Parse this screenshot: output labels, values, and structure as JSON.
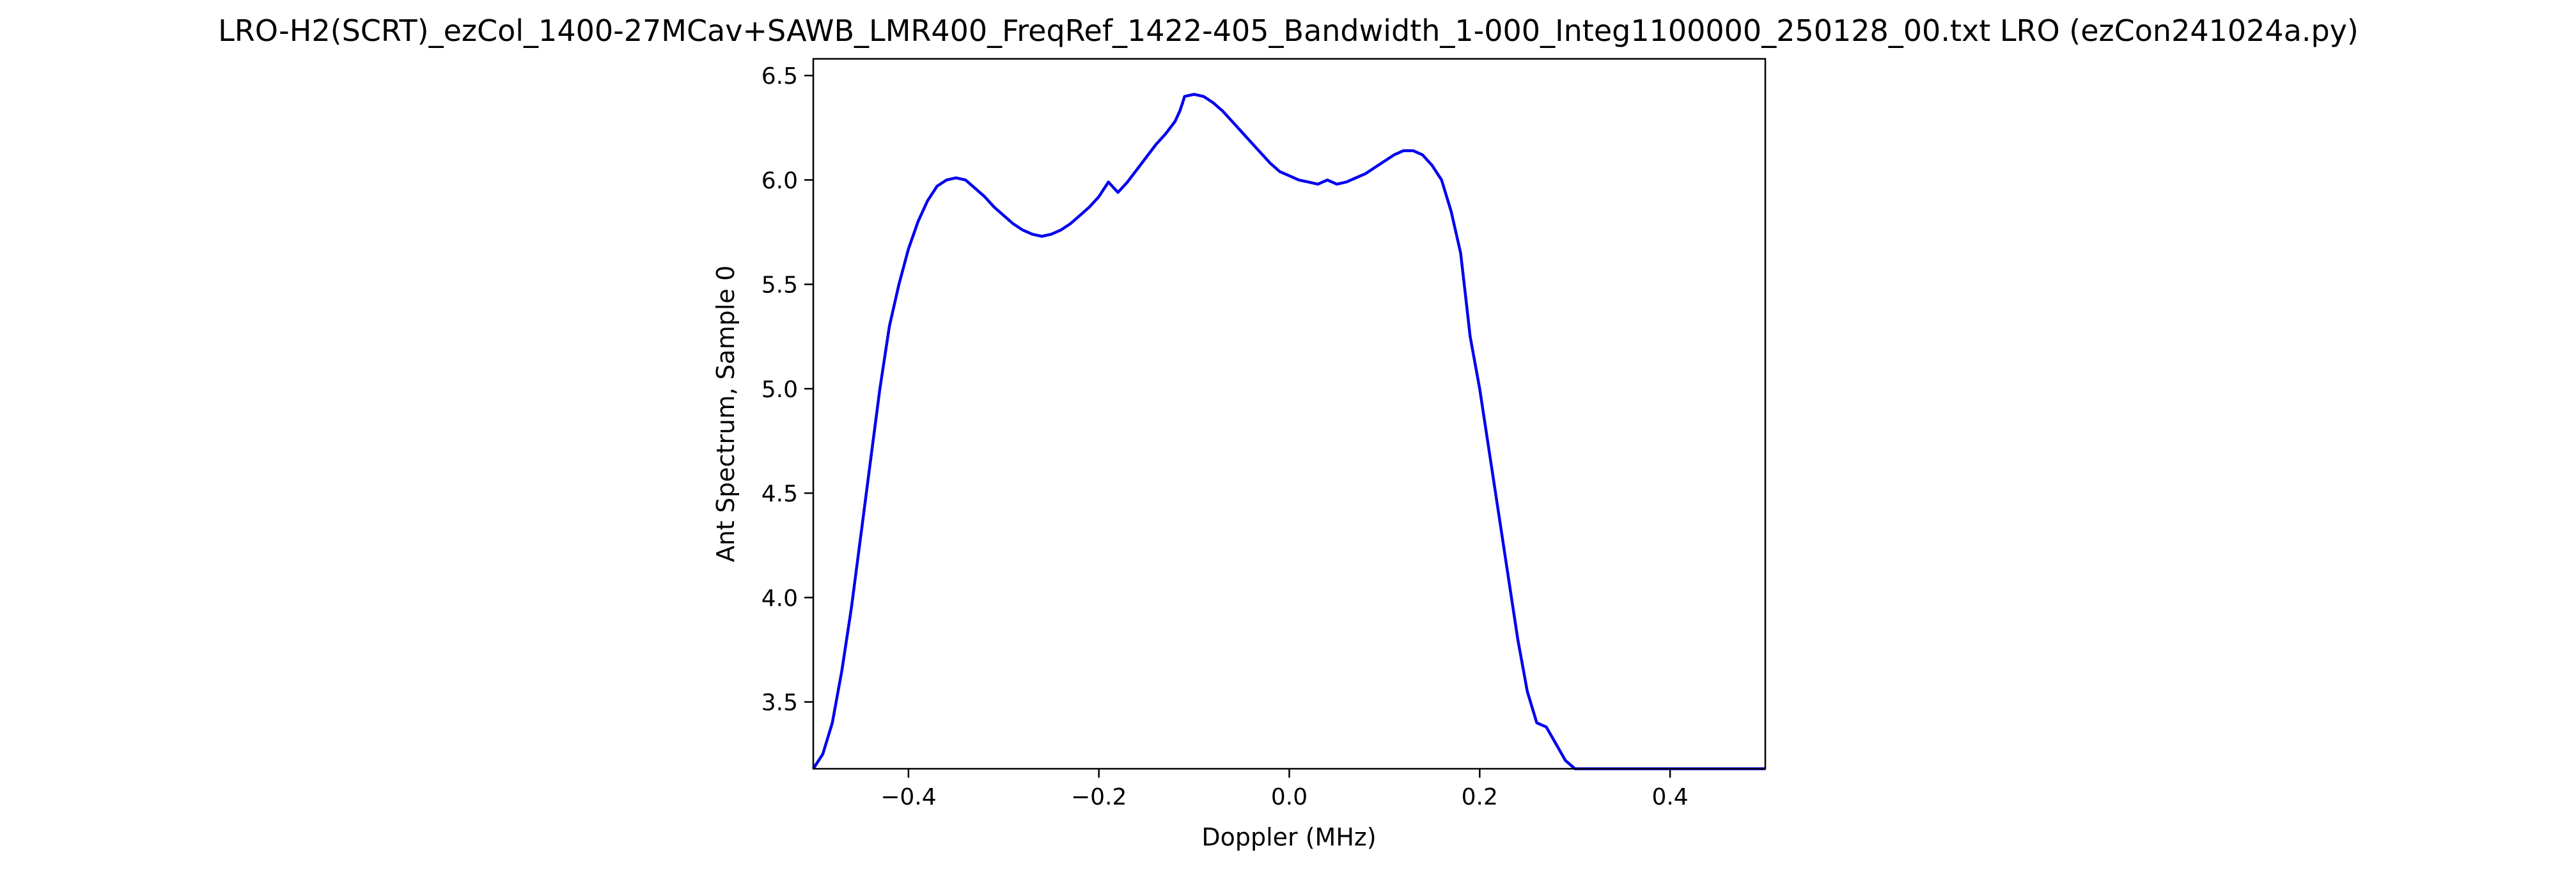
{
  "chart_data": {
    "type": "line",
    "title": "LRO-H2(SCRT)_ezCol_1400-27MCav+SAWB_LMR400_FreqRef_1422-405_Bandwidth_1-000_Integ1100000_250128_00.txt            LRO           (ezCon241024a.py)",
    "xlabel": "Doppler (MHz)",
    "ylabel": "Ant Spectrum, Sample 0",
    "xlim": [
      -0.5,
      0.5
    ],
    "ylim": [
      3.18,
      6.58
    ],
    "xticks": [
      -0.4,
      -0.2,
      0.0,
      0.2,
      0.4
    ],
    "xtick_labels": [
      "−0.4",
      "−0.2",
      "0.0",
      "0.2",
      "0.4"
    ],
    "yticks": [
      3.5,
      4.0,
      4.5,
      5.0,
      5.5,
      6.0,
      6.5
    ],
    "ytick_labels": [
      "3.5",
      "4.0",
      "4.5",
      "5.0",
      "5.5",
      "6.0",
      "6.5"
    ],
    "grid": false,
    "line_color": "#0000ee",
    "series": [
      {
        "x": [
          -0.5,
          -0.49,
          -0.48,
          -0.47,
          -0.46,
          -0.45,
          -0.44,
          -0.43,
          -0.42,
          -0.41,
          -0.4,
          -0.39,
          -0.38,
          -0.37,
          -0.36,
          -0.35,
          -0.34,
          -0.33,
          -0.32,
          -0.31,
          -0.3,
          -0.29,
          -0.28,
          -0.27,
          -0.26,
          -0.25,
          -0.24,
          -0.23,
          -0.22,
          -0.21,
          -0.2,
          -0.19,
          -0.18,
          -0.17,
          -0.16,
          -0.15,
          -0.14,
          -0.13,
          -0.12,
          -0.115,
          -0.112,
          -0.11,
          -0.1,
          -0.09,
          -0.08,
          -0.07,
          -0.06,
          -0.05,
          -0.04,
          -0.03,
          -0.02,
          -0.01,
          0.0,
          0.01,
          0.02,
          0.03,
          0.04,
          0.05,
          0.06,
          0.07,
          0.08,
          0.09,
          0.1,
          0.11,
          0.12,
          0.13,
          0.14,
          0.15,
          0.16,
          0.17,
          0.18,
          0.185,
          0.19,
          0.2,
          0.21,
          0.22,
          0.23,
          0.24,
          0.25,
          0.26,
          0.27,
          0.28,
          0.29,
          0.3,
          0.31,
          0.32,
          0.33,
          0.34,
          0.35,
          0.36,
          0.37,
          0.38,
          0.39,
          0.4,
          0.41,
          0.42,
          0.43,
          0.44,
          0.45,
          0.46,
          0.47,
          0.475,
          0.48,
          0.49,
          0.5
        ],
        "y": [
          3.18,
          3.25,
          3.4,
          3.65,
          3.95,
          4.3,
          4.65,
          5.0,
          5.3,
          5.5,
          5.67,
          5.8,
          5.9,
          5.97,
          6.0,
          6.01,
          6.0,
          5.96,
          5.92,
          5.87,
          5.83,
          5.79,
          5.76,
          5.74,
          5.73,
          5.74,
          5.76,
          5.79,
          5.83,
          5.87,
          5.92,
          5.99,
          5.94,
          5.99,
          6.05,
          6.11,
          6.17,
          6.22,
          6.28,
          6.33,
          6.37,
          6.4,
          6.41,
          6.4,
          6.37,
          6.33,
          6.28,
          6.23,
          6.18,
          6.13,
          6.08,
          6.04,
          6.02,
          6.0,
          5.99,
          5.98,
          6.0,
          5.98,
          5.99,
          6.01,
          6.03,
          6.06,
          6.09,
          6.12,
          6.14,
          6.14,
          6.12,
          6.07,
          6.0,
          5.85,
          5.65,
          5.45,
          5.25,
          5.0,
          4.7,
          4.4,
          4.1,
          3.8,
          3.55,
          3.4,
          3.38,
          3.3,
          3.22,
          3.18,
          3.18,
          3.18,
          3.18,
          3.18,
          3.18,
          3.18,
          3.18,
          3.18,
          3.18,
          3.18,
          3.18,
          3.18,
          3.18,
          3.18,
          3.18,
          3.18,
          3.18,
          3.18,
          3.18,
          3.18,
          3.18
        ]
      }
    ]
  }
}
